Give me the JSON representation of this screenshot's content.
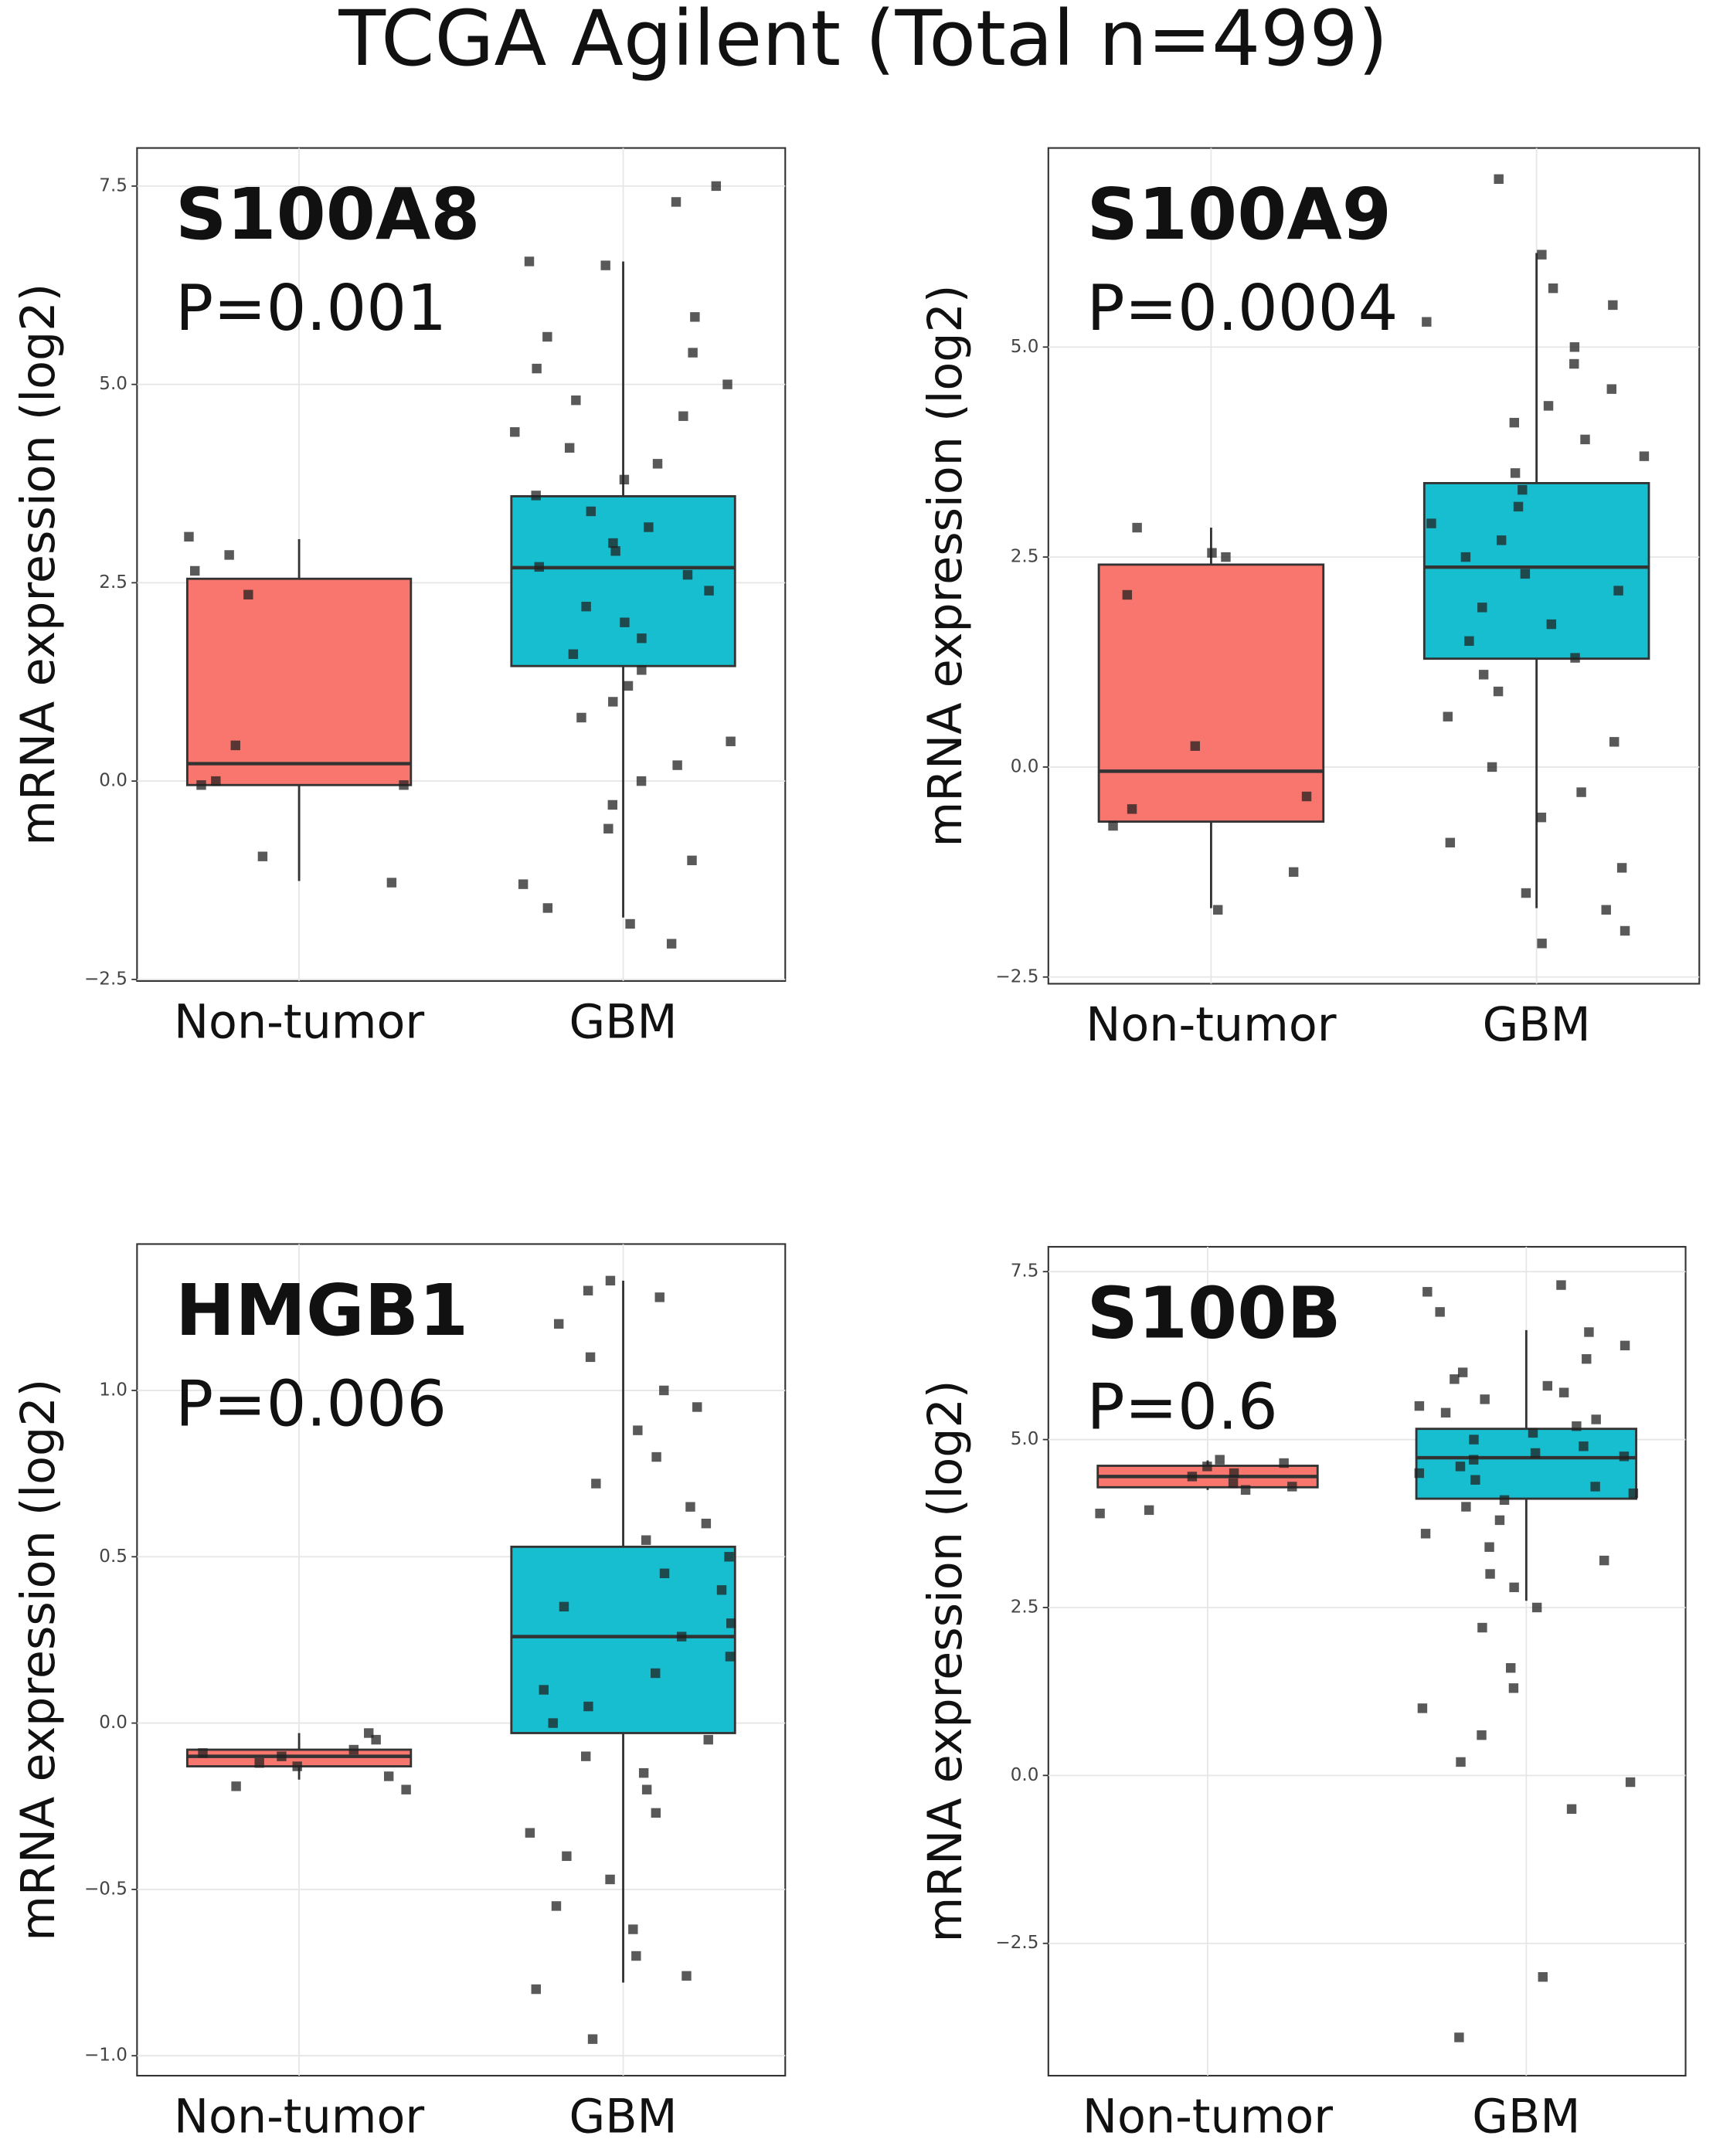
{
  "title": "TCGA Agilent (Total n=499)",
  "chart_data": [
    {
      "type": "box",
      "title": "S100A8",
      "subtitle": "P=0.001",
      "y_label": "mRNA expression (log2)",
      "categories": [
        "Non-tumor",
        "GBM"
      ],
      "grid": true,
      "ylim": [
        -2.52,
        7.98
      ],
      "yticks": [
        {
          "value": -2.5,
          "label": "−2.5"
        },
        {
          "value": 0,
          "label": "0.0"
        },
        2.5,
        {
          "value": 5,
          "label": "5.0"
        },
        7.5
      ],
      "boxes": [
        {
          "color": "#f8766d",
          "whislo": -1.26,
          "q1": -0.05,
          "med": 0.22,
          "q3": 2.55,
          "whishi": 3.05,
          "points": [
            3.08,
            2.85,
            2.65,
            2.35,
            0.45,
            -0.05,
            -0.05,
            0.0,
            -0.95,
            -1.28
          ]
        },
        {
          "color": "#17becf",
          "whislo": -1.72,
          "q1": 1.45,
          "med": 2.69,
          "q3": 3.59,
          "whishi": 6.55,
          "points": [
            7.5,
            7.3,
            6.55,
            6.5,
            5.85,
            5.6,
            5.4,
            5.2,
            5.0,
            4.8,
            4.6,
            4.4,
            4.2,
            4.0,
            3.8,
            3.6,
            3.4,
            3.2,
            3.0,
            2.9,
            2.7,
            2.6,
            2.4,
            2.2,
            2.0,
            1.8,
            1.6,
            1.4,
            1.2,
            1.0,
            0.8,
            0.5,
            0.2,
            0.0,
            -0.3,
            -0.6,
            -1.0,
            -1.3,
            -1.6,
            -1.8,
            -2.05
          ]
        }
      ]
    },
    {
      "type": "box",
      "title": "S100A9",
      "subtitle": "P=0.0004",
      "y_label": "mRNA expression (log2)",
      "categories": [
        "Non-tumor",
        "GBM"
      ],
      "grid": true,
      "ylim": [
        -2.58,
        7.37
      ],
      "yticks": [
        {
          "value": -2.5,
          "label": "−2.5"
        },
        {
          "value": 0,
          "label": "0.0"
        },
        2.5,
        {
          "value": 5,
          "label": "5.0"
        }
      ],
      "boxes": [
        {
          "color": "#f8766d",
          "whislo": -1.68,
          "q1": -0.65,
          "med": -0.05,
          "q3": 2.41,
          "whishi": 2.85,
          "points": [
            2.85,
            2.55,
            2.5,
            2.05,
            0.25,
            -0.35,
            -0.5,
            -0.7,
            -1.25,
            -1.7
          ]
        },
        {
          "color": "#17becf",
          "whislo": -1.68,
          "q1": 1.29,
          "med": 2.38,
          "q3": 3.38,
          "whishi": 6.12,
          "points": [
            7.0,
            6.1,
            5.7,
            5.5,
            5.3,
            5.0,
            4.8,
            4.5,
            4.3,
            4.1,
            3.9,
            3.7,
            3.5,
            3.3,
            3.1,
            2.9,
            2.7,
            2.5,
            2.3,
            2.1,
            1.9,
            1.7,
            1.5,
            1.3,
            1.1,
            0.9,
            0.6,
            0.3,
            0.0,
            -0.3,
            -0.6,
            -0.9,
            -1.2,
            -1.5,
            -1.7,
            -1.95,
            -2.1
          ]
        }
      ]
    },
    {
      "type": "box",
      "title": "HMGB1",
      "subtitle": "P=0.006",
      "y_label": "mRNA expression (log2)",
      "categories": [
        "Non-tumor",
        "GBM"
      ],
      "grid": true,
      "ylim": [
        -1.06,
        1.44
      ],
      "yticks": [
        {
          "value": -1,
          "label": "−1.0"
        },
        {
          "value": -0.5,
          "label": "−0.5"
        },
        {
          "value": 0,
          "label": "0.0"
        },
        0.5,
        {
          "value": 1,
          "label": "1.0"
        }
      ],
      "boxes": [
        {
          "color": "#f8766d",
          "whislo": -0.17,
          "q1": -0.13,
          "med": -0.1,
          "q3": -0.08,
          "whishi": -0.03,
          "points": [
            -0.03,
            -0.05,
            -0.08,
            -0.09,
            -0.1,
            -0.12,
            -0.13,
            -0.16,
            -0.19,
            -0.2
          ]
        },
        {
          "color": "#17becf",
          "whislo": -0.78,
          "q1": -0.03,
          "med": 0.26,
          "q3": 0.53,
          "whishi": 1.33,
          "points": [
            1.33,
            1.3,
            1.28,
            1.2,
            1.1,
            1.0,
            0.95,
            0.88,
            0.8,
            0.72,
            0.65,
            0.6,
            0.55,
            0.5,
            0.45,
            0.4,
            0.35,
            0.3,
            0.26,
            0.2,
            0.15,
            0.1,
            0.05,
            0.0,
            -0.05,
            -0.1,
            -0.15,
            -0.2,
            -0.27,
            -0.33,
            -0.4,
            -0.47,
            -0.55,
            -0.62,
            -0.7,
            -0.76,
            -0.8,
            -0.95
          ]
        }
      ]
    },
    {
      "type": "box",
      "title": "S100B",
      "subtitle": "P=0.6",
      "y_label": "mRNA expression (log2)",
      "categories": [
        "Non-tumor",
        "GBM"
      ],
      "grid": true,
      "ylim": [
        -4.47,
        7.87
      ],
      "yticks": [
        {
          "value": -2.5,
          "label": "−2.5"
        },
        {
          "value": 0,
          "label": "0.0"
        },
        2.5,
        {
          "value": 5,
          "label": "5.0"
        },
        7.5
      ],
      "boxes": [
        {
          "color": "#f8766d",
          "whislo": 4.25,
          "q1": 4.29,
          "med": 4.45,
          "q3": 4.61,
          "whishi": 4.69,
          "points": [
            4.7,
            4.65,
            4.6,
            4.5,
            4.45,
            4.35,
            4.3,
            4.25,
            3.95,
            3.9
          ]
        },
        {
          "color": "#17becf",
          "whislo": 2.6,
          "q1": 4.12,
          "med": 4.73,
          "q3": 5.16,
          "whishi": 6.63,
          "points": [
            7.3,
            7.2,
            6.9,
            6.6,
            6.4,
            6.2,
            6.0,
            5.9,
            5.8,
            5.7,
            5.6,
            5.5,
            5.4,
            5.3,
            5.2,
            5.1,
            5.0,
            4.9,
            4.8,
            4.75,
            4.7,
            4.6,
            4.5,
            4.4,
            4.3,
            4.2,
            4.1,
            4.0,
            3.8,
            3.6,
            3.4,
            3.2,
            3.0,
            2.8,
            2.5,
            2.2,
            1.6,
            1.3,
            1.0,
            0.6,
            0.2,
            -0.1,
            -0.5,
            -3.0,
            -3.9
          ]
        }
      ]
    }
  ]
}
